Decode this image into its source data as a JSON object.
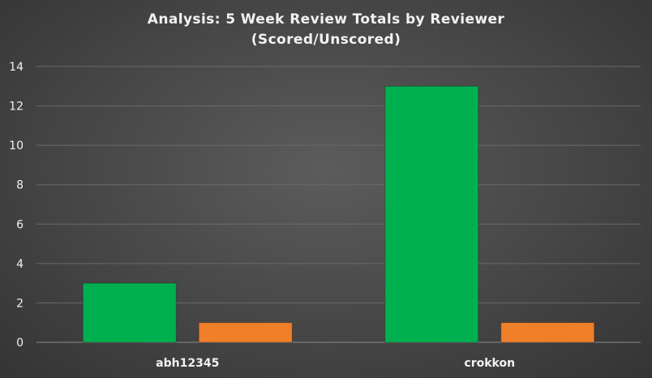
{
  "chart_data": {
    "type": "bar",
    "title_line1": "Analysis:  5 Week Review Totals  by Reviewer",
    "title_line2": "(Scored/Unscored)",
    "categories": [
      "abh12345",
      "crokkon"
    ],
    "series": [
      {
        "values": [
          3,
          13
        ],
        "color": "#00b050"
      },
      {
        "values": [
          1,
          1
        ],
        "color": "#f07f2a"
      }
    ],
    "ylim": [
      0,
      14
    ],
    "yticks": [
      0,
      2,
      4,
      6,
      8,
      10,
      12,
      14
    ],
    "grid": true,
    "legend": "none"
  }
}
